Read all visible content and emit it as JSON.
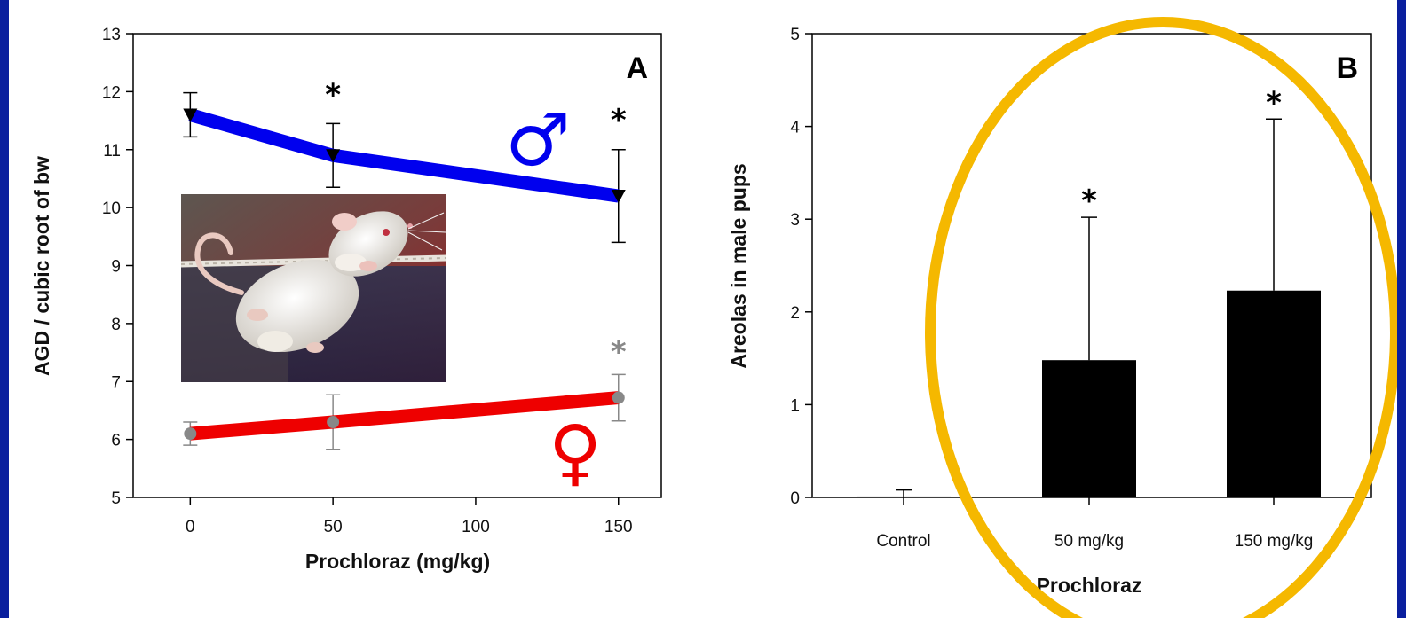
{
  "colors": {
    "male": "#0000ee",
    "female": "#ee0000",
    "bar": "#000000",
    "highlight": "#f5b800",
    "grey_marker": "#888888",
    "border": "#0a1f9e"
  },
  "chart_data": [
    {
      "type": "line",
      "panel_label": "A",
      "xlabel": "Prochloraz (mg/kg)",
      "ylabel": "AGD / cubic root of bw",
      "xlim": [
        -20,
        165
      ],
      "ylim": [
        5,
        13
      ],
      "xticks": [
        0,
        50,
        100,
        150
      ],
      "yticks": [
        5,
        6,
        7,
        8,
        9,
        10,
        11,
        12,
        13
      ],
      "x": [
        0,
        50,
        150
      ],
      "series": [
        {
          "symbol": "♂",
          "values": [
            11.6,
            10.9,
            10.2
          ],
          "error": [
            0.38,
            0.55,
            0.8
          ],
          "significant": [
            false,
            true,
            true
          ],
          "star_y": [
            null,
            11.98,
            11.55
          ]
        },
        {
          "symbol": "♀",
          "values": [
            6.1,
            6.3,
            6.72
          ],
          "error": [
            0.2,
            0.47,
            0.4
          ],
          "significant": [
            false,
            false,
            true
          ],
          "star_y": [
            null,
            null,
            7.55
          ]
        }
      ],
      "significance_marker": "*"
    },
    {
      "type": "bar",
      "panel_label": "B",
      "xlabel": "Prochloraz",
      "ylabel": "Areolas in male pups",
      "ylim": [
        0,
        5
      ],
      "yticks": [
        0,
        1,
        2,
        3,
        4,
        5
      ],
      "categories": [
        "Control",
        "50 mg/kg",
        "150 mg/kg"
      ],
      "values": [
        0.01,
        1.48,
        2.23
      ],
      "error": [
        0.07,
        1.54,
        1.85
      ],
      "significant": [
        false,
        true,
        true
      ],
      "star_y": [
        null,
        3.22,
        4.28
      ],
      "significance_marker": "*"
    }
  ]
}
